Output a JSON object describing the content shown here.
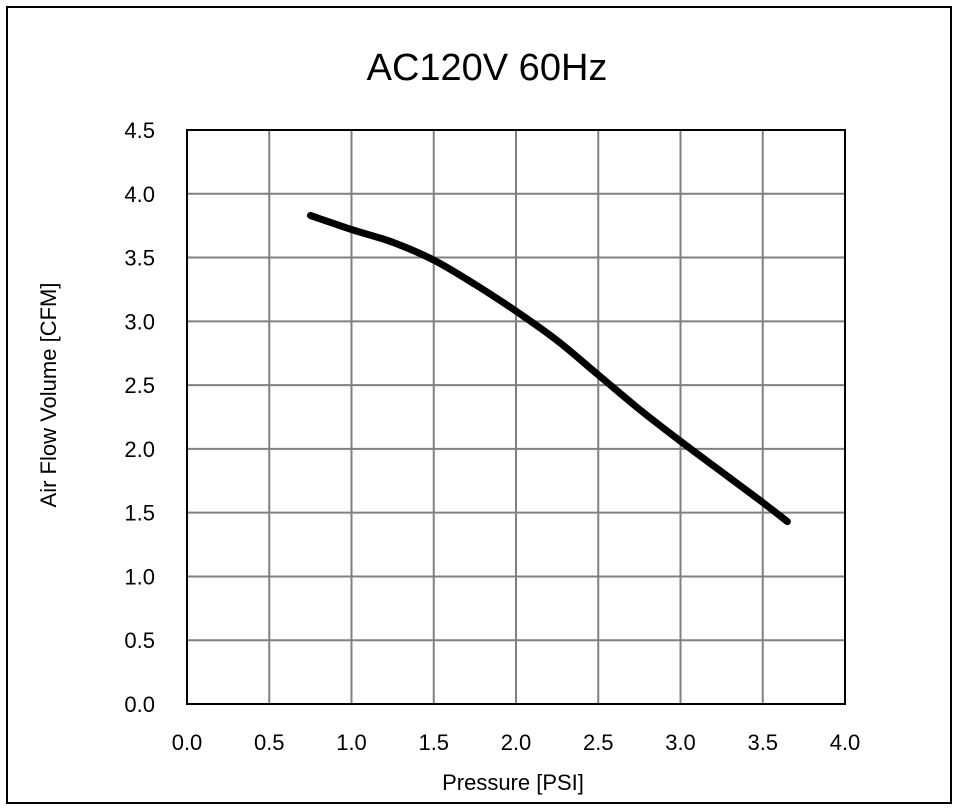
{
  "chart_data": {
    "type": "line",
    "title": "AC120V 60Hz",
    "xlabel": "Pressure [PSI]",
    "ylabel": "Air Flow Volume [CFM]",
    "xlim": [
      0,
      4.0
    ],
    "ylim": [
      0,
      4.5
    ],
    "xticks": [
      "0.0",
      "0.5",
      "1.0",
      "1.5",
      "2.0",
      "2.5",
      "3.0",
      "3.5",
      "4.0"
    ],
    "yticks": [
      "0.0",
      "0.5",
      "1.0",
      "1.5",
      "2.0",
      "2.5",
      "3.0",
      "3.5",
      "4.0",
      "4.5"
    ],
    "grid": true,
    "series": [
      {
        "color": "#000000",
        "x": [
          0.75,
          1.0,
          1.25,
          1.5,
          1.75,
          2.0,
          2.25,
          2.5,
          2.75,
          3.0,
          3.25,
          3.5,
          3.65
        ],
        "y": [
          3.83,
          3.72,
          3.62,
          3.48,
          3.29,
          3.08,
          2.85,
          2.58,
          2.31,
          2.06,
          1.82,
          1.58,
          1.43
        ]
      }
    ]
  }
}
